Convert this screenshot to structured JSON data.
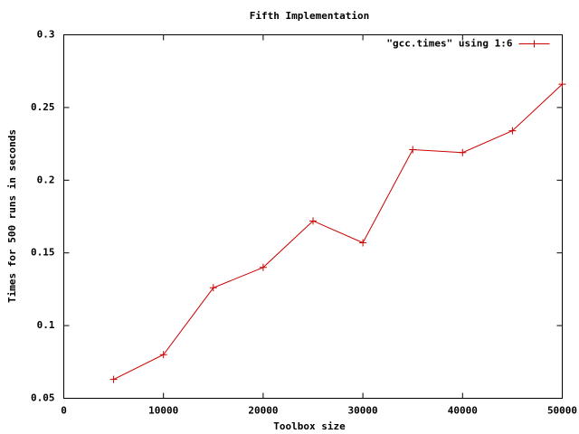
{
  "chart_data": {
    "type": "line",
    "title": "Fifth Implementation",
    "xlabel": "Toolbox size",
    "ylabel": "Times for 500 runs in seconds",
    "x": [
      5000,
      10000,
      15000,
      20000,
      25000,
      30000,
      35000,
      40000,
      45000,
      50000
    ],
    "series": [
      {
        "name": "\"gcc.times\" using 1:6",
        "color": "#cc0000",
        "values": [
          0.063,
          0.08,
          0.126,
          0.14,
          0.172,
          0.157,
          0.221,
          0.219,
          0.234,
          0.266
        ]
      }
    ],
    "xlim": [
      0,
      50000
    ],
    "xticks": [
      0,
      10000,
      20000,
      30000,
      40000,
      50000
    ],
    "ylim": [
      0.05,
      0.3
    ],
    "yticks": [
      0.05,
      0.1,
      0.15,
      0.2,
      0.25,
      0.3
    ],
    "legend": "top-right"
  }
}
